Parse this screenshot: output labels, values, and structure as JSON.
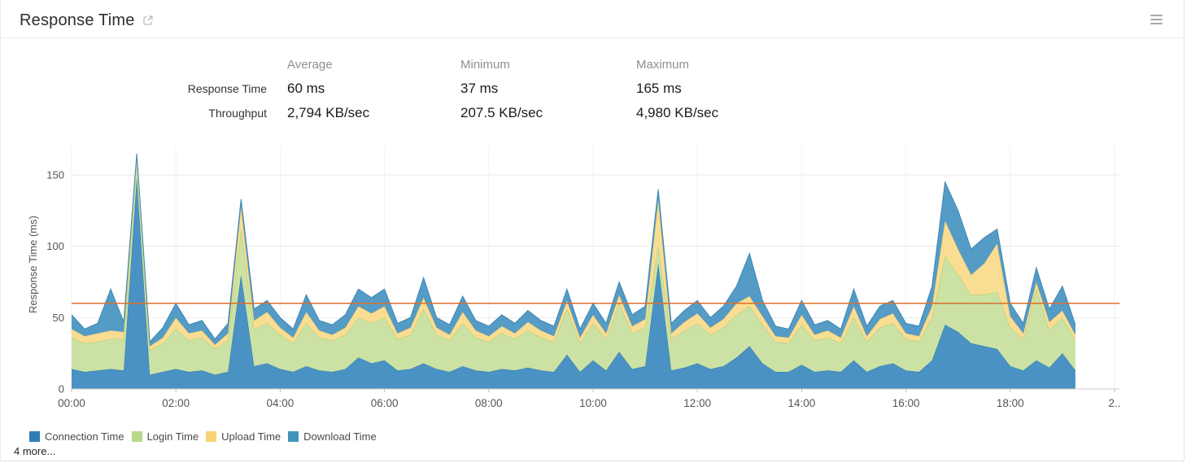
{
  "panel": {
    "title": "Response Time"
  },
  "stats": {
    "columns": [
      "Average",
      "Minimum",
      "Maximum"
    ],
    "rows": [
      {
        "label": "Response Time",
        "values": [
          "60 ms",
          "37 ms",
          "165 ms"
        ]
      },
      {
        "label": "Throughput",
        "values": [
          "2,794 KB/sec",
          "207.5 KB/sec",
          "4,980 KB/sec"
        ]
      }
    ]
  },
  "legend": {
    "items": [
      {
        "label": "Connection Time",
        "color": "#2E7EB5"
      },
      {
        "label": "Login Time",
        "color": "#B7D98B"
      },
      {
        "label": "Upload Time",
        "color": "#F7D576"
      },
      {
        "label": "Download Time",
        "color": "#4295BA"
      }
    ],
    "more_label": "4 more..."
  },
  "chart_data": {
    "type": "area",
    "stacked": true,
    "title": "Response Time",
    "ylabel": "Response Time (ms)",
    "xlabel": "",
    "ylim": [
      0,
      175
    ],
    "yticks": [
      0,
      50,
      100,
      150
    ],
    "grid": true,
    "legend_position": "bottom",
    "x_start": "00:00",
    "x_interval_minutes": 15,
    "x_axis_hours_range": [
      0,
      20.1
    ],
    "xticks": [
      {
        "hour": 0,
        "label": "00:00"
      },
      {
        "hour": 2,
        "label": "02:00"
      },
      {
        "hour": 4,
        "label": "04:00"
      },
      {
        "hour": 6,
        "label": "06:00"
      },
      {
        "hour": 8,
        "label": "08:00"
      },
      {
        "hour": 10,
        "label": "10:00"
      },
      {
        "hour": 12,
        "label": "12:00"
      },
      {
        "hour": 14,
        "label": "14:00"
      },
      {
        "hour": 16,
        "label": "16:00"
      },
      {
        "hour": 18,
        "label": "18:00"
      },
      {
        "hour": 20,
        "label": "2.."
      }
    ],
    "average_line": {
      "value": 60,
      "color": "#DD6F2D"
    },
    "series": [
      {
        "name": "Connection Time",
        "color": "#4A92C4",
        "edge_color": "#2F7AAE",
        "values": [
          14,
          12,
          13,
          14,
          13,
          148,
          10,
          12,
          14,
          12,
          13,
          10,
          12,
          80,
          16,
          18,
          14,
          12,
          16,
          13,
          12,
          14,
          22,
          18,
          20,
          13,
          14,
          18,
          14,
          12,
          16,
          13,
          12,
          14,
          13,
          15,
          13,
          12,
          24,
          12,
          20,
          13,
          26,
          14,
          16,
          88,
          13,
          15,
          18,
          14,
          16,
          22,
          30,
          18,
          12,
          12,
          17,
          12,
          13,
          12,
          20,
          12,
          16,
          18,
          13,
          12,
          20,
          45,
          40,
          32,
          30,
          28,
          16,
          13,
          20,
          15,
          25,
          13
        ]
      },
      {
        "name": "Login Time",
        "color": "#CBE2A4",
        "edge_color": "#A6CD7C",
        "values": [
          22,
          20,
          20,
          21,
          22,
          13,
          17,
          20,
          28,
          22,
          23,
          18,
          22,
          32,
          26,
          28,
          24,
          20,
          30,
          23,
          22,
          24,
          28,
          28,
          30,
          22,
          24,
          38,
          24,
          22,
          30,
          23,
          21,
          25,
          22,
          26,
          23,
          21,
          32,
          20,
          26,
          22,
          34,
          25,
          27,
          12,
          22,
          26,
          28,
          24,
          27,
          30,
          28,
          27,
          21,
          20,
          28,
          22,
          23,
          20,
          30,
          21,
          27,
          28,
          22,
          21,
          30,
          48,
          40,
          34,
          36,
          40,
          27,
          22,
          50,
          26,
          25,
          21
        ]
      },
      {
        "name": "Upload Time",
        "color": "#F9DD92",
        "edge_color": "#E9C567",
        "values": [
          6,
          5,
          6,
          6,
          5,
          2,
          3,
          4,
          8,
          5,
          5,
          3,
          5,
          16,
          6,
          8,
          5,
          4,
          8,
          5,
          4,
          5,
          8,
          7,
          8,
          4,
          5,
          8,
          5,
          4,
          8,
          5,
          4,
          5,
          4,
          6,
          5,
          4,
          6,
          4,
          6,
          4,
          6,
          5,
          6,
          33,
          4,
          6,
          7,
          5,
          6,
          8,
          7,
          6,
          4,
          4,
          7,
          4,
          5,
          4,
          8,
          4,
          6,
          7,
          4,
          4,
          8,
          25,
          18,
          14,
          22,
          34,
          8,
          4,
          5,
          6,
          5,
          4
        ]
      },
      {
        "name": "Download Time",
        "color": "#549BC6",
        "edge_color": "#3F87B4",
        "values": [
          10,
          5,
          7,
          29,
          7,
          2,
          3,
          7,
          10,
          6,
          7,
          4,
          7,
          5,
          8,
          8,
          7,
          6,
          12,
          7,
          7,
          9,
          12,
          11,
          12,
          7,
          7,
          14,
          7,
          7,
          11,
          7,
          7,
          8,
          7,
          8,
          7,
          7,
          8,
          6,
          8,
          7,
          9,
          8,
          9,
          7,
          7,
          8,
          9,
          7,
          9,
          12,
          30,
          11,
          7,
          6,
          10,
          7,
          7,
          6,
          12,
          7,
          9,
          9,
          7,
          7,
          14,
          27,
          27,
          18,
          18,
          10,
          9,
          7,
          10,
          9,
          17,
          7
        ]
      }
    ]
  }
}
